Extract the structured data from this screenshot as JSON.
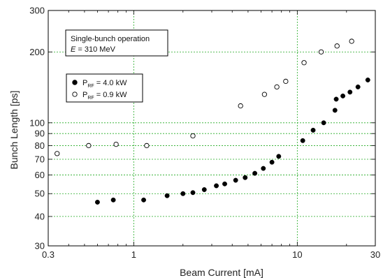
{
  "chart_data": {
    "type": "scatter",
    "xlabel": "Beam Current [mA]",
    "ylabel": "Bunch Length [ps]",
    "x_scale": "log",
    "y_scale": "log",
    "xlim": [
      0.3,
      30
    ],
    "ylim": [
      30,
      300
    ],
    "x_ticks": [
      {
        "value": 0.3,
        "label": "0.3"
      },
      {
        "value": 1,
        "label": "1"
      },
      {
        "value": 10,
        "label": "10"
      },
      {
        "value": 30,
        "label": "30"
      }
    ],
    "y_ticks": [
      {
        "value": 30,
        "label": "30"
      },
      {
        "value": 40,
        "label": "40"
      },
      {
        "value": 50,
        "label": "50"
      },
      {
        "value": 60,
        "label": "60"
      },
      {
        "value": 70,
        "label": "70"
      },
      {
        "value": 80,
        "label": "80"
      },
      {
        "value": 90,
        "label": "90"
      },
      {
        "value": 100,
        "label": "100"
      },
      {
        "value": 200,
        "label": "200"
      },
      {
        "value": 300,
        "label": "300"
      }
    ],
    "grid": true,
    "annotation": {
      "line1": "Single-bunch operation",
      "line2_var": "E",
      "line2_rest": " = 310 MeV"
    },
    "legend_placement": "upper-left",
    "series": [
      {
        "name": "P_RF = 4.0 kW",
        "label_main": "P",
        "label_sub": "RF",
        "label_value": " = 4.0 kW",
        "marker": "filled-circle",
        "x": [
          0.6,
          0.75,
          1.15,
          1.6,
          2.0,
          2.3,
          2.7,
          3.2,
          3.6,
          4.2,
          4.8,
          5.5,
          6.2,
          7.0,
          7.7,
          10.8,
          12.5,
          14.5,
          17.0,
          17.3,
          19.0,
          21.0,
          23.5,
          27.0
        ],
        "y": [
          46,
          47,
          47,
          49,
          50,
          50.5,
          52,
          54,
          55,
          57,
          58.5,
          61,
          64,
          68,
          72,
          84,
          93,
          100,
          113,
          126,
          130,
          135,
          142,
          152
        ]
      },
      {
        "name": "P_RF = 0.9 kW",
        "label_main": "P",
        "label_sub": "RF",
        "label_value": " = 0.9 kW",
        "marker": "open-circle",
        "x": [
          0.34,
          0.53,
          0.78,
          1.2,
          2.3,
          4.5,
          6.3,
          7.5,
          8.5,
          11.0,
          14.0,
          17.5,
          21.5
        ],
        "y": [
          74,
          80,
          81,
          80,
          88,
          118,
          132,
          142,
          150,
          180,
          200,
          212,
          222
        ]
      }
    ]
  }
}
